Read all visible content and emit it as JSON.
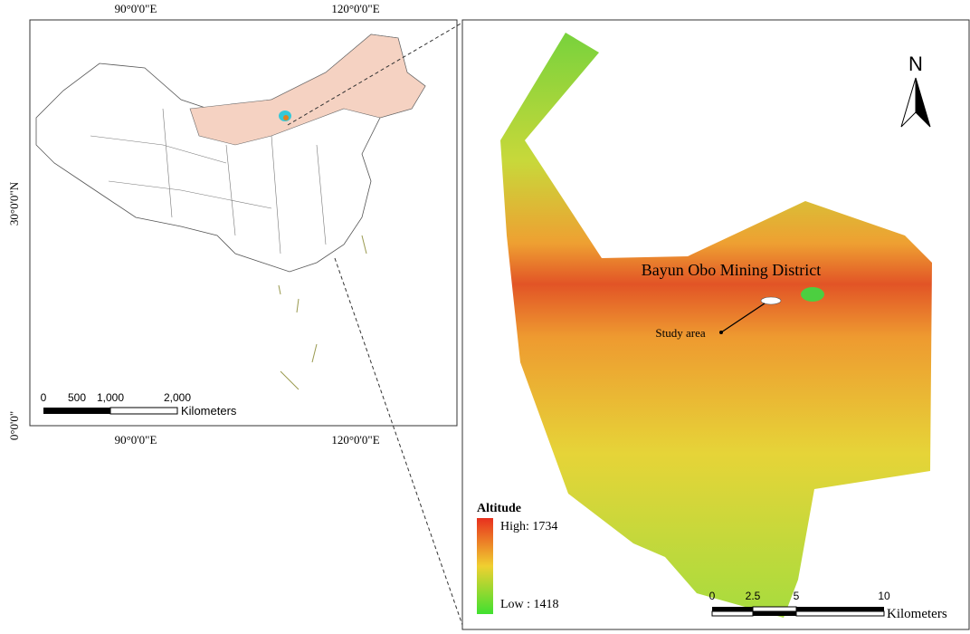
{
  "left_map": {
    "top_labels": [
      "90°0'0\"E",
      "120°0'0\"E"
    ],
    "bottom_labels": [
      "90°0'0\"E",
      "120°0'0\"E"
    ],
    "left_labels": [
      "30°0'0\"N",
      "0°0'0\""
    ],
    "scale_bar": {
      "ticks": [
        "0",
        "500",
        "1,000",
        "2,000"
      ],
      "unit": "Kilometers"
    }
  },
  "right_map": {
    "north": "N",
    "title": "Bayun Obo Mining District",
    "study_area": "Study area",
    "legend": {
      "title": "Altitude",
      "high": "High: 1734",
      "low": "Low : 1418"
    },
    "scale_bar": {
      "ticks": [
        "0",
        "2.5",
        "5",
        "10"
      ],
      "unit": "Kilometers"
    }
  }
}
